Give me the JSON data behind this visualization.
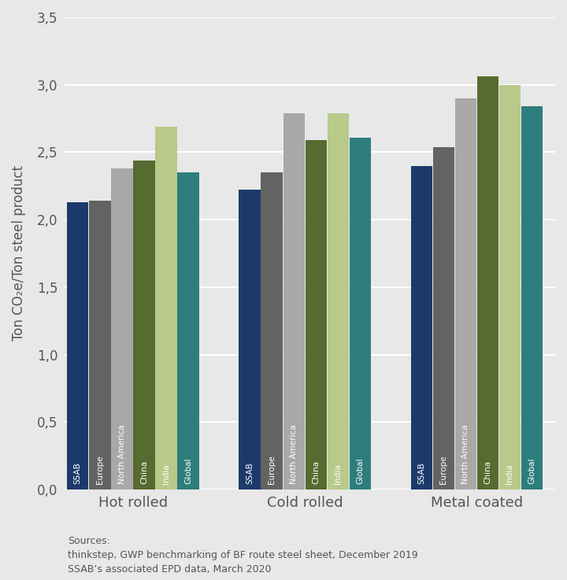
{
  "categories": [
    "Hot rolled",
    "Cold rolled",
    "Metal coated"
  ],
  "series": [
    "SSAB",
    "Europe",
    "North America",
    "China",
    "India",
    "Global"
  ],
  "values": {
    "Hot rolled": [
      2.13,
      2.14,
      2.38,
      2.44,
      2.69,
      2.35
    ],
    "Cold rolled": [
      2.22,
      2.35,
      2.79,
      2.59,
      2.79,
      2.61
    ],
    "Metal coated": [
      2.4,
      2.54,
      2.9,
      3.06,
      3.0,
      2.84
    ]
  },
  "colors": [
    "#1b3a6b",
    "#636363",
    "#a8a8a8",
    "#556b2f",
    "#b8c98a",
    "#2e7d7d"
  ],
  "ylabel": "Ton CO₂e/Ton steel product",
  "ylim": [
    0,
    3.5
  ],
  "yticks": [
    0.0,
    0.5,
    1.0,
    1.5,
    2.0,
    2.5,
    3.0,
    3.5
  ],
  "ytick_labels": [
    "0,0",
    "0,5",
    "1,0",
    "1,5",
    "2,0",
    "2,5",
    "3,0",
    "3,5"
  ],
  "background_color": "#e8e8e8",
  "sources_text": "Sources:\nthinkstep, GWP benchmarking of BF route steel sheet, December 2019\nSSAB’s associated EPD data, March 2020",
  "bar_label_color": "white",
  "bar_label_fontsize": 7.5,
  "group_centers": [
    0.42,
    1.47,
    2.52
  ],
  "bar_width": 0.135,
  "xlim": [
    0.0,
    3.0
  ],
  "grid_color": "#ffffff",
  "tick_color": "#555555",
  "label_fontsize": 12,
  "category_fontsize": 13
}
